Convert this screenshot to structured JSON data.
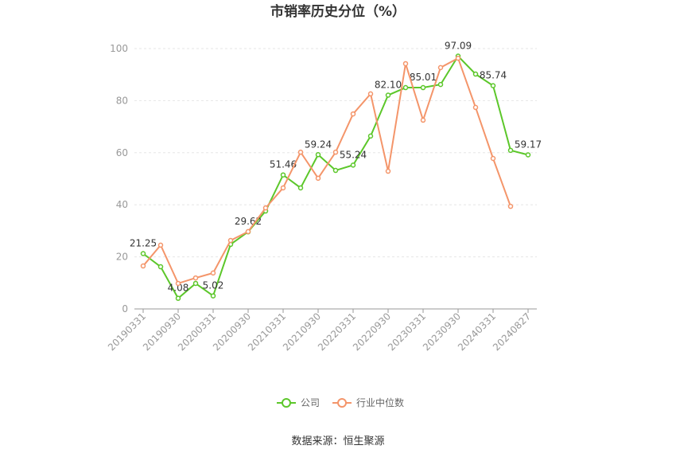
{
  "chart_data": {
    "type": "line",
    "title": "市销率历史分位（%）",
    "source": "数据来源：恒生聚源",
    "categories": [
      "20190331",
      null,
      "20190930",
      null,
      "20200331",
      null,
      "20200930",
      null,
      "20210331",
      null,
      "20210930",
      null,
      "20220331",
      null,
      "20220930",
      null,
      "20230331",
      null,
      "20230930",
      null,
      "20240331",
      null,
      "20240827"
    ],
    "series": [
      {
        "name": "公司",
        "color": "#5cc72a",
        "values": [
          21.25,
          16.2,
          4.08,
          9.8,
          5.02,
          24.8,
          29.62,
          37.6,
          51.46,
          46.5,
          59.24,
          53.2,
          55.24,
          66.4,
          82.1,
          85.0,
          85.01,
          86.2,
          97.09,
          90.2,
          85.74,
          60.9,
          59.17
        ],
        "value_labels": [
          "21.25",
          null,
          "4.08",
          null,
          "5.02",
          null,
          "29.62",
          null,
          "51.46",
          null,
          "59.24",
          null,
          "55.24",
          null,
          "82.10",
          null,
          "85.01",
          null,
          "97.09",
          null,
          "85.74",
          null,
          "59.17"
        ]
      },
      {
        "name": "行业中位数",
        "color": "#f4956a",
        "values": [
          16.5,
          24.5,
          9.8,
          11.9,
          13.8,
          26.3,
          29.7,
          38.8,
          46.5,
          60.2,
          50.2,
          60.2,
          74.9,
          82.6,
          52.9,
          94.2,
          72.5,
          92.7,
          96.3,
          77.4,
          57.8,
          39.4,
          null
        ]
      }
    ],
    "ylim": [
      0,
      100
    ],
    "yticks": [
      0,
      20,
      40,
      60,
      80,
      100
    ],
    "grid": true,
    "legend": "bottom"
  }
}
